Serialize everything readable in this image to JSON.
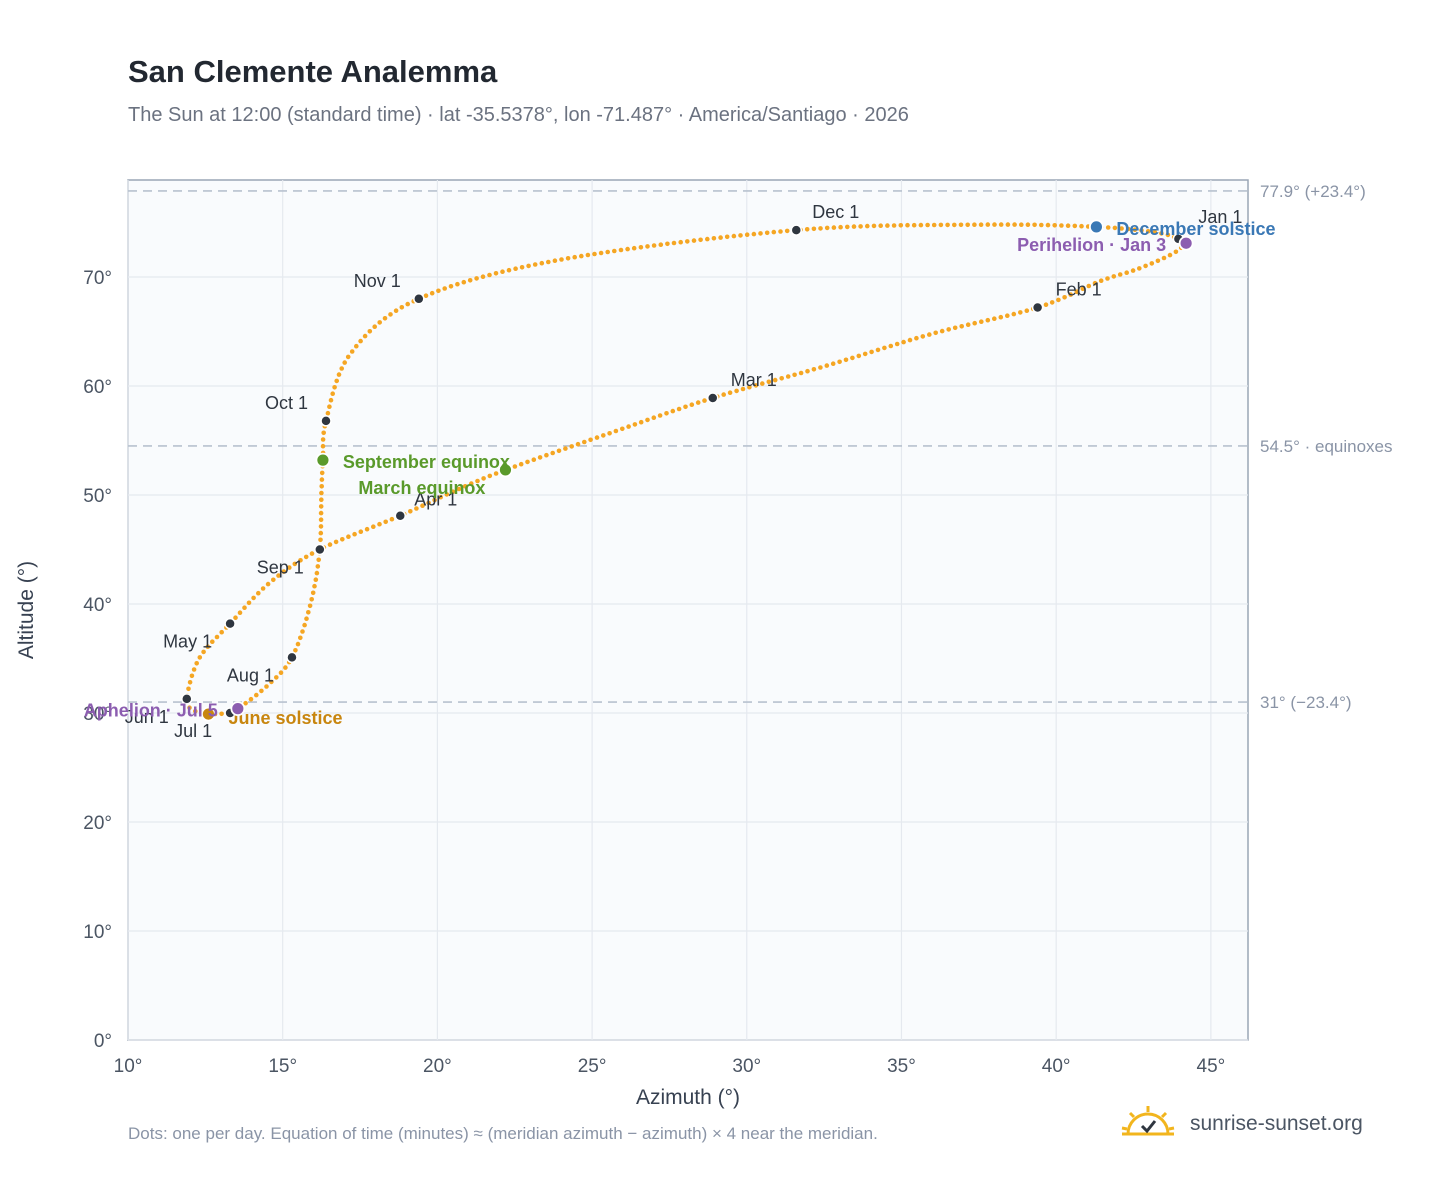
{
  "title": "San Clemente Analemma",
  "subtitle": "The Sun at 12:00 (standard time) · lat -35.5378°, lon -71.487° · America/Santiago · 2026",
  "footnote": "Dots: one per day. Equation of time (minutes) ≈ (meridian azimuth − azimuth) × 4 near the meridian.",
  "brand": {
    "name": "sunrise-sunset.org",
    "icon": "sun-check-icon"
  },
  "colors": {
    "curve": "#f5a623",
    "month_marker": "#2f3640",
    "equinox": "#5a9a2b",
    "june_solstice": "#c8860f",
    "december_solstice": "#3a78b5",
    "apsis": "#8c5db0",
    "plot_bg": "#f9fbfd",
    "grid": "#e5e9ef",
    "ref_line": "#b8c2cf"
  },
  "chart_data": {
    "type": "scatter",
    "title": "San Clemente Analemma",
    "xlabel": "Azimuth (°)",
    "ylabel": "Altitude (°)",
    "xlim": [
      10,
      46.2
    ],
    "ylim": [
      0,
      78.9
    ],
    "xticks": [
      10,
      15,
      20,
      25,
      30,
      35,
      40,
      45
    ],
    "yticks": [
      0,
      10,
      20,
      30,
      40,
      50,
      60,
      70
    ],
    "grid": true,
    "reference_lines": [
      {
        "y": 77.9,
        "label": "77.9° (+23.4°)"
      },
      {
        "y": 54.5,
        "label": "54.5° · equinoxes"
      },
      {
        "y": 31,
        "label": "31° (−23.4°)"
      }
    ],
    "series": [
      {
        "daily_points": "one per day, 2026",
        "path_keypoints": [
          [
            44.2,
            73.1
          ],
          [
            44.05,
            72.7
          ],
          [
            43.8,
            72.2
          ],
          [
            43.3,
            71.5
          ],
          [
            42.5,
            70.6
          ],
          [
            41.4,
            69.6
          ],
          [
            39.4,
            67.2
          ],
          [
            36.0,
            64.8
          ],
          [
            32.5,
            61.8
          ],
          [
            28.9,
            58.9
          ],
          [
            25.5,
            55.6
          ],
          [
            22.2,
            52.3
          ],
          [
            20.5,
            50.3
          ],
          [
            18.8,
            48.1
          ],
          [
            16.2,
            45.0
          ],
          [
            14.6,
            42.0
          ],
          [
            13.3,
            38.2
          ],
          [
            12.3,
            35.0
          ],
          [
            11.9,
            31.3
          ],
          [
            12.1,
            30.3
          ],
          [
            12.6,
            29.9
          ],
          [
            13.2,
            30.0
          ],
          [
            13.55,
            30.4
          ],
          [
            14.5,
            32.5
          ],
          [
            15.3,
            35.1
          ],
          [
            15.9,
            40.0
          ],
          [
            16.2,
            45.0
          ],
          [
            16.25,
            50.0
          ],
          [
            16.3,
            53.2
          ],
          [
            16.4,
            56.8
          ],
          [
            17.2,
            63.0
          ],
          [
            19.4,
            68.0
          ],
          [
            24.0,
            71.6
          ],
          [
            31.6,
            74.3
          ],
          [
            37.5,
            74.8
          ],
          [
            41.3,
            74.6
          ],
          [
            43.4,
            74.0
          ],
          [
            44.2,
            73.1
          ]
        ]
      }
    ],
    "month_markers": [
      {
        "label": "Jan 1",
        "x": 43.95,
        "y": 73.5
      },
      {
        "label": "Feb 1",
        "x": 39.4,
        "y": 67.2
      },
      {
        "label": "Mar 1",
        "x": 28.9,
        "y": 58.9
      },
      {
        "label": "Apr 1",
        "x": 18.8,
        "y": 48.1
      },
      {
        "label": "May 1",
        "x": 13.3,
        "y": 38.2
      },
      {
        "label": "Jun 1",
        "x": 11.9,
        "y": 31.3
      },
      {
        "label": "Jul 1",
        "x": 13.3,
        "y": 30.0
      },
      {
        "label": "Aug 1",
        "x": 15.3,
        "y": 35.1
      },
      {
        "label": "Sep 1",
        "x": 16.2,
        "y": 45.0
      },
      {
        "label": "Oct 1",
        "x": 16.4,
        "y": 56.8
      },
      {
        "label": "Nov 1",
        "x": 19.4,
        "y": 68.0
      },
      {
        "label": "Dec 1",
        "x": 31.6,
        "y": 74.3
      }
    ],
    "events": [
      {
        "label": "March equinox",
        "x": 22.2,
        "y": 52.3,
        "kind": "equinox"
      },
      {
        "label": "September equinox",
        "x": 16.3,
        "y": 53.2,
        "kind": "equinox"
      },
      {
        "label": "June solstice",
        "x": 12.6,
        "y": 29.9,
        "kind": "june_solstice"
      },
      {
        "label": "December solstice",
        "x": 41.3,
        "y": 74.6,
        "kind": "december_solstice"
      },
      {
        "label": "Perihelion · Jan 3",
        "x": 44.2,
        "y": 73.1,
        "kind": "apsis"
      },
      {
        "label": "Aphelion · Jul 5",
        "x": 13.55,
        "y": 30.4,
        "kind": "apsis"
      }
    ]
  }
}
